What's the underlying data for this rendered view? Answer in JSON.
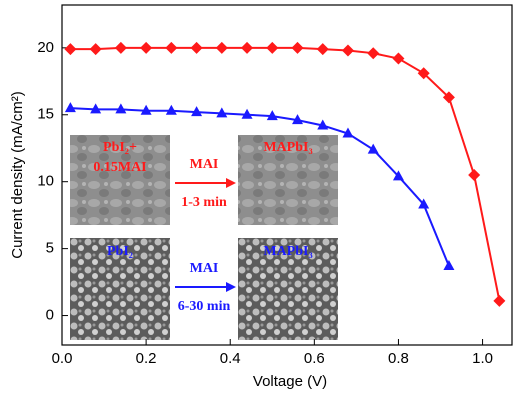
{
  "chart_data": {
    "type": "line",
    "x_label": "Voltage (V)",
    "y_label": "Current density (mA/cm²)",
    "xlim": [
      0,
      1.07
    ],
    "ylim": [
      -2.2,
      23.2
    ],
    "xticks": [
      {
        "value": 0,
        "label": "0.0"
      },
      {
        "value": 0.2,
        "label": "0.2"
      },
      {
        "value": 0.4,
        "label": "0.4"
      },
      {
        "value": 0.6,
        "label": "0.6"
      },
      {
        "value": 0.8,
        "label": "0.8"
      },
      {
        "value": 1,
        "label": "1.0"
      }
    ],
    "yticks": [
      0,
      5,
      10,
      15,
      20
    ],
    "series": [
      {
        "color": "#ff1a1a",
        "marker": "diamond",
        "x": [
          0.02,
          0.08,
          0.14,
          0.2,
          0.26,
          0.32,
          0.38,
          0.44,
          0.5,
          0.56,
          0.62,
          0.68,
          0.74,
          0.8,
          0.86,
          0.92,
          0.98,
          1.04
        ],
        "values": [
          19.9,
          19.9,
          20.0,
          20.0,
          20.0,
          20.0,
          20.0,
          20.0,
          20.0,
          20.0,
          19.9,
          19.8,
          19.6,
          19.2,
          18.1,
          16.3,
          10.5,
          1.1
        ]
      },
      {
        "color": "#1a1aff",
        "marker": "triangle",
        "x": [
          0.02,
          0.08,
          0.14,
          0.2,
          0.26,
          0.32,
          0.38,
          0.44,
          0.5,
          0.56,
          0.62,
          0.68,
          0.74,
          0.8,
          0.86,
          0.92
        ],
        "values": [
          15.5,
          15.4,
          15.4,
          15.3,
          15.3,
          15.2,
          15.1,
          15.0,
          14.9,
          14.6,
          14.2,
          13.6,
          12.4,
          10.4,
          8.3,
          3.7
        ]
      }
    ],
    "insets": [
      {
        "lines": [
          "PbI₂+",
          "0.15MAI"
        ],
        "color": "#ff1a1a"
      },
      {
        "lines": [
          "MAPbI₃"
        ],
        "color": "#ff1a1a"
      },
      {
        "lines": [
          "PbI₂"
        ],
        "color": "#1a1aff"
      },
      {
        "lines": [
          "MAPbI₃"
        ],
        "color": "#1a1aff"
      }
    ],
    "arrows": [
      {
        "text": "MAI",
        "subtext": "1-3 min",
        "color": "#ff1a1a"
      },
      {
        "text": "MAI",
        "subtext": "6-30 min",
        "color": "#1a1aff"
      }
    ]
  }
}
